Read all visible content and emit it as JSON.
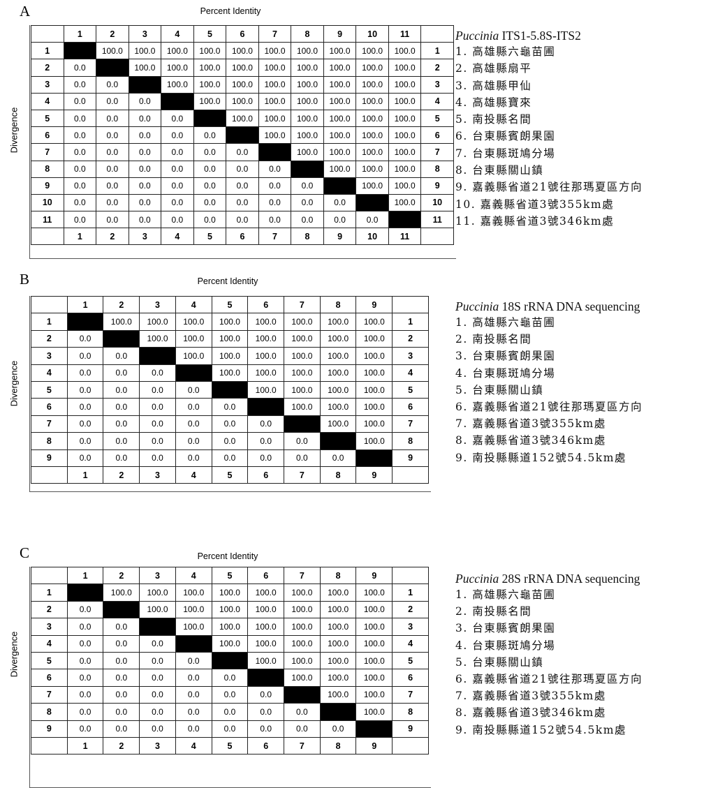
{
  "common": {
    "matrix_title": "Percent Identity",
    "y_label": "Divergence",
    "identity_value": "100.0",
    "divergence_value": "0.0"
  },
  "panels": [
    {
      "letter": "A",
      "n": 11,
      "legend_genus": "Puccinia",
      "legend_title_rest": " ITS1-5.8S-ITS2",
      "legend_items": [
        "1. 高雄縣六龜苗圃",
        "2. 高雄縣扇平",
        "3. 高雄縣甲仙",
        "4. 高雄縣寶來",
        "5. 南投縣名間",
        "6. 台東縣賓朗果園",
        "7. 台東縣斑鳩分場",
        "8. 台東縣關山鎮",
        "9. 嘉義縣省道21號往那瑪夏區方向",
        "10. 嘉義縣省道3號355km處",
        "11. 嘉義縣省道3號346km處"
      ]
    },
    {
      "letter": "B",
      "n": 9,
      "legend_genus": "Puccinia",
      "legend_title_rest": " 18S rRNA  DNA sequencing",
      "legend_items": [
        "1. 高雄縣六龜苗圃",
        "2. 南投縣名間",
        "3. 台東縣賓朗果園",
        "4. 台東縣斑鳩分場",
        "5. 台東縣關山鎮",
        "6. 嘉義縣省道21號往那瑪夏區方向",
        "7. 嘉義縣省道3號355km處",
        "8. 嘉義縣省道3號346km處",
        "9. 南投縣縣道152號54.5km處"
      ]
    },
    {
      "letter": "C",
      "n": 9,
      "legend_genus": "Puccinia",
      "legend_title_rest": " 28S rRNA  DNA sequencing",
      "legend_items": [
        "1. 高雄縣六龜苗圃",
        "2. 南投縣名間",
        "3. 台東縣賓朗果園",
        "4. 台東縣斑鳩分場",
        "5. 台東縣關山鎮",
        "6. 嘉義縣省道21號往那瑪夏區方向",
        "7. 嘉義縣省道3號355km處",
        "8. 嘉義縣省道3號346km處",
        "9. 南投縣縣道152號54.5km處"
      ]
    }
  ]
}
